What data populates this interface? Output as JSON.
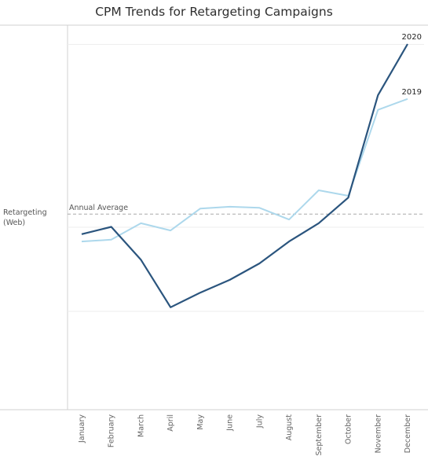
{
  "chart_data": {
    "type": "line",
    "title": "CPM Trends for Retargeting Campaigns",
    "row_label": "Retargeting\n(Web)",
    "categories": [
      "January",
      "February",
      "March",
      "April",
      "May",
      "June",
      "July",
      "August",
      "September",
      "October",
      "November",
      "December"
    ],
    "series": [
      {
        "name": "2020",
        "color": "#2b557e",
        "values": [
          0.48,
          0.5,
          0.41,
          0.28,
          0.32,
          0.355,
          0.4,
          0.46,
          0.51,
          0.58,
          0.86,
          1.0
        ]
      },
      {
        "name": "2019",
        "color": "#add8ec",
        "values": [
          0.46,
          0.465,
          0.51,
          0.49,
          0.55,
          0.555,
          0.552,
          0.52,
          0.6,
          0.585,
          0.82,
          0.85
        ]
      }
    ],
    "reference_line": {
      "label": "Annual Average",
      "value": 0.535
    },
    "grid": "horizontal",
    "ylim": [
      0,
      1.05
    ]
  }
}
